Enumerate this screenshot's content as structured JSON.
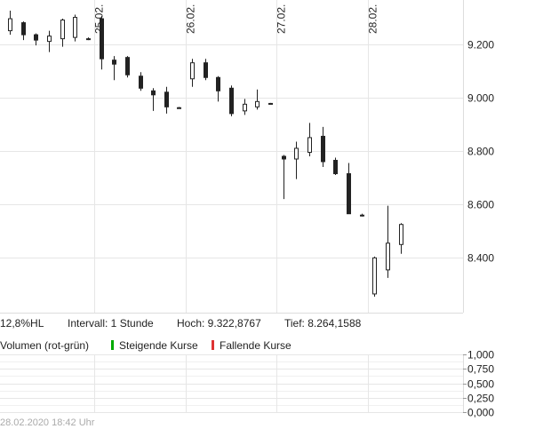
{
  "chart_data": [
    {
      "type": "candlestick",
      "interval": "1 Stunde",
      "x_labels": [
        {
          "label": "25.02.",
          "index": 6.5
        },
        {
          "label": "26.02.",
          "index": 13.5
        },
        {
          "label": "27.02.",
          "index": 20.5
        },
        {
          "label": "28.02.",
          "index": 27.5
        }
      ],
      "y_ticks": [
        {
          "value": 8400,
          "label": "8.400"
        },
        {
          "value": 8600,
          "label": "8.600"
        },
        {
          "value": 8800,
          "label": "8.800"
        },
        {
          "value": 9000,
          "label": "9.000"
        },
        {
          "value": 9200,
          "label": "9.200"
        }
      ],
      "ylim": [
        8195,
        9365
      ],
      "grid": true,
      "candles": [
        {
          "o": 9250,
          "h": 9325,
          "l": 9235,
          "c": 9295
        },
        {
          "o": 9280,
          "h": 9285,
          "l": 9215,
          "c": 9235
        },
        {
          "o": 9235,
          "h": 9240,
          "l": 9195,
          "c": 9215
        },
        {
          "o": 9210,
          "h": 9250,
          "l": 9170,
          "c": 9230
        },
        {
          "o": 9220,
          "h": 9295,
          "l": 9190,
          "c": 9290
        },
        {
          "o": 9225,
          "h": 9310,
          "l": 9210,
          "c": 9300
        },
        {
          "o": 9220,
          "h": 9225,
          "l": 9215,
          "c": 9220
        },
        {
          "o": 9295,
          "h": 9305,
          "l": 9105,
          "c": 9145
        },
        {
          "o": 9140,
          "h": 9155,
          "l": 9065,
          "c": 9125
        },
        {
          "o": 9150,
          "h": 9155,
          "l": 9075,
          "c": 9085
        },
        {
          "o": 9080,
          "h": 9095,
          "l": 9025,
          "c": 9035
        },
        {
          "o": 9025,
          "h": 9035,
          "l": 8950,
          "c": 9010
        },
        {
          "o": 9020,
          "h": 9040,
          "l": 8940,
          "c": 8965
        },
        {
          "o": 8962,
          "h": 8965,
          "l": 8960,
          "c": 8962
        },
        {
          "o": 9070,
          "h": 9145,
          "l": 9040,
          "c": 9130
        },
        {
          "o": 9130,
          "h": 9145,
          "l": 9065,
          "c": 9075
        },
        {
          "o": 9075,
          "h": 9080,
          "l": 8985,
          "c": 9025
        },
        {
          "o": 9035,
          "h": 9045,
          "l": 8930,
          "c": 8940
        },
        {
          "o": 8950,
          "h": 8995,
          "l": 8935,
          "c": 8975
        },
        {
          "o": 8965,
          "h": 9030,
          "l": 8955,
          "c": 8985
        },
        {
          "o": 8978,
          "h": 8980,
          "l": 8976,
          "c": 8978
        },
        {
          "o": 8780,
          "h": 8785,
          "l": 8620,
          "c": 8770
        },
        {
          "o": 8770,
          "h": 8835,
          "l": 8695,
          "c": 8810
        },
        {
          "o": 8795,
          "h": 8905,
          "l": 8780,
          "c": 8850
        },
        {
          "o": 8855,
          "h": 8890,
          "l": 8740,
          "c": 8760
        },
        {
          "o": 8765,
          "h": 8775,
          "l": 8710,
          "c": 8715
        },
        {
          "o": 8715,
          "h": 8755,
          "l": 8565,
          "c": 8565
        },
        {
          "o": 8560,
          "h": 8565,
          "l": 8555,
          "c": 8560
        },
        {
          "o": 8265,
          "h": 8405,
          "l": 8255,
          "c": 8400
        },
        {
          "o": 8355,
          "h": 8595,
          "l": 8325,
          "c": 8455
        },
        {
          "o": 8450,
          "h": 8530,
          "l": 8415,
          "c": 8525
        }
      ]
    },
    {
      "type": "bar",
      "title": "Volumen (rot-grün)",
      "y_ticks": [
        {
          "value": 0,
          "label": "0,000"
        },
        {
          "value": 0.25,
          "label": "0,250"
        },
        {
          "value": 0.5,
          "label": "0,500"
        },
        {
          "value": 0.75,
          "label": "0,750"
        },
        {
          "value": 1,
          "label": "1,000"
        }
      ],
      "ylim": [
        0,
        1
      ],
      "values": []
    }
  ],
  "info": {
    "range": "12,8%HL",
    "interval": "Intervall: 1 Stunde",
    "high": "Hoch: 9.322,8767",
    "low": "Tief: 8.264,1588"
  },
  "legend": {
    "volume": "Volumen (rot-grün)",
    "rising": "Steigende Kurse",
    "falling": "Fallende Kurse"
  },
  "colors": {
    "rising": "#00aa00",
    "falling": "#dd3333",
    "grid": "#e6e6e6",
    "candle": "#222222"
  },
  "footer": "28.02.2020 18:42 Uhr"
}
